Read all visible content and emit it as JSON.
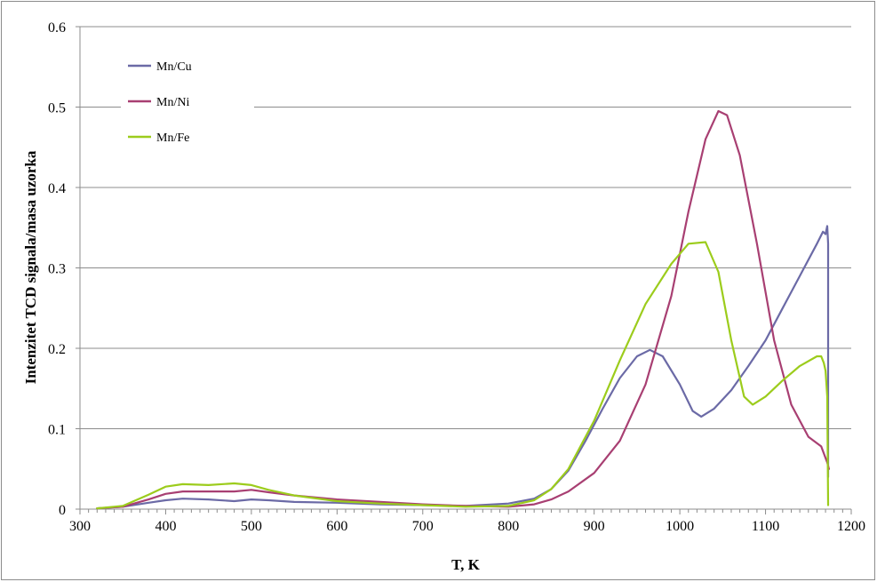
{
  "chart_data": {
    "type": "line",
    "title": "",
    "xlabel": "T, K",
    "ylabel": "Intenzitet TCD signala/masa uzorka",
    "xlim": [
      300,
      1200
    ],
    "ylim": [
      0,
      0.6
    ],
    "xticks": [
      "300",
      "400",
      "500",
      "600",
      "700",
      "800",
      "900",
      "1000",
      "1100",
      "1200"
    ],
    "yticks": [
      "0",
      "0.1",
      "0.2",
      "0.3",
      "0.4",
      "0.5",
      "0.6"
    ],
    "grid": "horizontal",
    "legend_position": "top-left",
    "series": [
      {
        "name": "Mn/Cu",
        "color": "#6b6aa6",
        "points": [
          [
            320,
            0.001
          ],
          [
            350,
            0.003
          ],
          [
            380,
            0.008
          ],
          [
            400,
            0.011
          ],
          [
            420,
            0.013
          ],
          [
            450,
            0.012
          ],
          [
            480,
            0.01
          ],
          [
            500,
            0.012
          ],
          [
            520,
            0.011
          ],
          [
            550,
            0.009
          ],
          [
            600,
            0.008
          ],
          [
            650,
            0.006
          ],
          [
            700,
            0.005
          ],
          [
            750,
            0.004
          ],
          [
            800,
            0.007
          ],
          [
            830,
            0.013
          ],
          [
            850,
            0.025
          ],
          [
            870,
            0.048
          ],
          [
            890,
            0.085
          ],
          [
            910,
            0.125
          ],
          [
            930,
            0.163
          ],
          [
            950,
            0.19
          ],
          [
            965,
            0.198
          ],
          [
            980,
            0.19
          ],
          [
            1000,
            0.155
          ],
          [
            1015,
            0.122
          ],
          [
            1025,
            0.115
          ],
          [
            1040,
            0.125
          ],
          [
            1060,
            0.148
          ],
          [
            1080,
            0.178
          ],
          [
            1100,
            0.21
          ],
          [
            1120,
            0.25
          ],
          [
            1140,
            0.29
          ],
          [
            1160,
            0.33
          ],
          [
            1167,
            0.345
          ],
          [
            1170,
            0.342
          ],
          [
            1172,
            0.352
          ],
          [
            1173,
            0.33
          ],
          [
            1173,
            0.15
          ],
          [
            1173,
            0.04
          ]
        ]
      },
      {
        "name": "Mn/Ni",
        "color": "#a83f72",
        "points": [
          [
            320,
            0.001
          ],
          [
            350,
            0.003
          ],
          [
            380,
            0.012
          ],
          [
            400,
            0.019
          ],
          [
            420,
            0.022
          ],
          [
            450,
            0.022
          ],
          [
            480,
            0.022
          ],
          [
            500,
            0.024
          ],
          [
            520,
            0.021
          ],
          [
            550,
            0.017
          ],
          [
            600,
            0.012
          ],
          [
            650,
            0.009
          ],
          [
            700,
            0.006
          ],
          [
            750,
            0.004
          ],
          [
            800,
            0.003
          ],
          [
            830,
            0.006
          ],
          [
            850,
            0.012
          ],
          [
            870,
            0.022
          ],
          [
            900,
            0.045
          ],
          [
            930,
            0.085
          ],
          [
            960,
            0.155
          ],
          [
            990,
            0.265
          ],
          [
            1010,
            0.37
          ],
          [
            1030,
            0.46
          ],
          [
            1045,
            0.495
          ],
          [
            1055,
            0.49
          ],
          [
            1070,
            0.44
          ],
          [
            1090,
            0.33
          ],
          [
            1110,
            0.21
          ],
          [
            1130,
            0.13
          ],
          [
            1150,
            0.09
          ],
          [
            1165,
            0.078
          ],
          [
            1172,
            0.058
          ],
          [
            1174,
            0.05
          ]
        ]
      },
      {
        "name": "Mn/Fe",
        "color": "#9ccc1c",
        "points": [
          [
            320,
            0.001
          ],
          [
            350,
            0.004
          ],
          [
            380,
            0.018
          ],
          [
            400,
            0.028
          ],
          [
            420,
            0.031
          ],
          [
            450,
            0.03
          ],
          [
            480,
            0.032
          ],
          [
            500,
            0.03
          ],
          [
            520,
            0.024
          ],
          [
            550,
            0.017
          ],
          [
            600,
            0.01
          ],
          [
            650,
            0.007
          ],
          [
            700,
            0.005
          ],
          [
            750,
            0.003
          ],
          [
            800,
            0.004
          ],
          [
            830,
            0.011
          ],
          [
            850,
            0.025
          ],
          [
            870,
            0.05
          ],
          [
            900,
            0.11
          ],
          [
            930,
            0.185
          ],
          [
            960,
            0.255
          ],
          [
            990,
            0.305
          ],
          [
            1010,
            0.33
          ],
          [
            1030,
            0.332
          ],
          [
            1045,
            0.295
          ],
          [
            1060,
            0.21
          ],
          [
            1075,
            0.14
          ],
          [
            1085,
            0.13
          ],
          [
            1100,
            0.14
          ],
          [
            1120,
            0.16
          ],
          [
            1140,
            0.178
          ],
          [
            1160,
            0.19
          ],
          [
            1165,
            0.19
          ],
          [
            1168,
            0.182
          ],
          [
            1170,
            0.172
          ],
          [
            1172,
            0.14
          ],
          [
            1173,
            0.005
          ]
        ]
      }
    ]
  }
}
